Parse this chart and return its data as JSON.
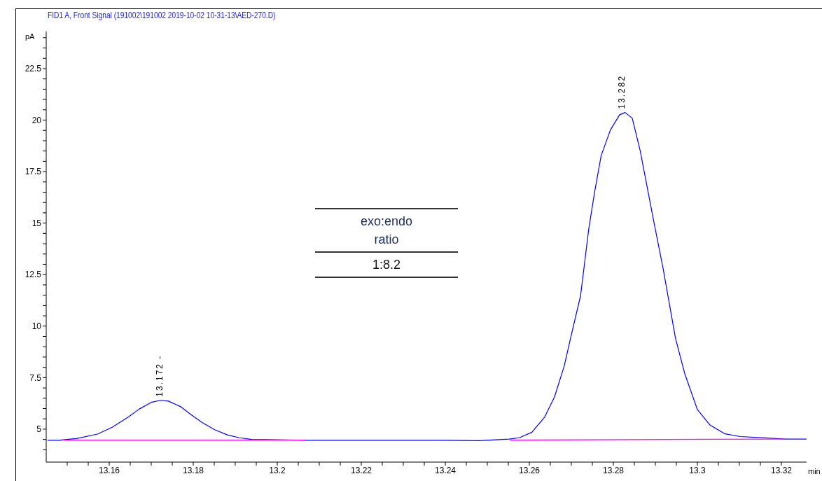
{
  "chart_data": {
    "type": "line",
    "title": "FID1 A, Front Signal (191002\\191002 2019-10-02 10-31-13\\AED-270.D)",
    "xlabel": "min",
    "ylabel": "pA",
    "xlim": [
      13.145,
      13.326
    ],
    "ylim": [
      3.4,
      24.3
    ],
    "xticks": [
      {
        "value": 13.15,
        "label": null
      },
      {
        "value": 13.155,
        "label": null
      },
      13.16,
      {
        "value": 13.165,
        "label": null
      },
      {
        "value": 13.17,
        "label": null
      },
      {
        "value": 13.175,
        "label": null
      },
      13.18,
      {
        "value": 13.185,
        "label": null
      },
      {
        "value": 13.19,
        "label": null
      },
      {
        "value": 13.195,
        "label": null
      },
      {
        "value": 13.2,
        "label": "13.2"
      },
      {
        "value": 13.205,
        "label": null
      },
      {
        "value": 13.21,
        "label": null
      },
      {
        "value": 13.215,
        "label": null
      },
      13.22,
      {
        "value": 13.225,
        "label": null
      },
      {
        "value": 13.23,
        "label": null
      },
      {
        "value": 13.235,
        "label": null
      },
      13.24,
      {
        "value": 13.245,
        "label": null
      },
      {
        "value": 13.25,
        "label": null
      },
      {
        "value": 13.255,
        "label": null
      },
      13.26,
      {
        "value": 13.265,
        "label": null
      },
      {
        "value": 13.27,
        "label": null
      },
      {
        "value": 13.275,
        "label": null
      },
      13.28,
      {
        "value": 13.285,
        "label": null
      },
      {
        "value": 13.29,
        "label": null
      },
      {
        "value": 13.295,
        "label": null
      },
      {
        "value": 13.3,
        "label": "13.3"
      },
      {
        "value": 13.305,
        "label": null
      },
      {
        "value": 13.31,
        "label": null
      },
      {
        "value": 13.315,
        "label": null
      },
      13.32
    ],
    "yticks": [
      {
        "value": 4,
        "label": null
      },
      {
        "value": 4.5,
        "label": null
      },
      5,
      {
        "value": 5.5,
        "label": null
      },
      {
        "value": 6,
        "label": null
      },
      {
        "value": 6.5,
        "label": null
      },
      {
        "value": 7,
        "label": null
      },
      7.5,
      {
        "value": 8,
        "label": null
      },
      {
        "value": 8.5,
        "label": null
      },
      {
        "value": 9,
        "label": null
      },
      {
        "value": 9.5,
        "label": null
      },
      10,
      {
        "value": 10.5,
        "label": null
      },
      {
        "value": 11,
        "label": null
      },
      {
        "value": 11.5,
        "label": null
      },
      {
        "value": 12,
        "label": null
      },
      12.5,
      {
        "value": 13,
        "label": null
      },
      {
        "value": 13.5,
        "label": null
      },
      {
        "value": 14,
        "label": null
      },
      {
        "value": 14.5,
        "label": null
      },
      15,
      {
        "value": 15.5,
        "label": null
      },
      {
        "value": 16,
        "label": null
      },
      {
        "value": 16.5,
        "label": null
      },
      {
        "value": 17,
        "label": null
      },
      17.5,
      {
        "value": 18,
        "label": null
      },
      {
        "value": 18.5,
        "label": null
      },
      {
        "value": 19,
        "label": null
      },
      {
        "value": 19.5,
        "label": null
      },
      20,
      {
        "value": 20.5,
        "label": null
      },
      {
        "value": 21,
        "label": null
      },
      {
        "value": 21.5,
        "label": null
      },
      {
        "value": 22,
        "label": null
      },
      22.5,
      {
        "value": 23,
        "label": null
      },
      {
        "value": 23.5,
        "label": null
      },
      {
        "value": 24,
        "label": null
      }
    ],
    "series": [
      {
        "color": "#0000ff",
        "x": [
          13.1453,
          13.148,
          13.1499,
          13.1522,
          13.1572,
          13.1607,
          13.1647,
          13.1671,
          13.17,
          13.1722,
          13.1741,
          13.177,
          13.1793,
          13.1822,
          13.1851,
          13.1881,
          13.191,
          13.1939,
          13.1997,
          13.207,
          13.22,
          13.24,
          13.248,
          13.2552,
          13.2576,
          13.2606,
          13.2636,
          13.266,
          13.2683,
          13.2698,
          13.2722,
          13.2741,
          13.2755,
          13.2771,
          13.2793,
          13.2815,
          13.2828,
          13.2845,
          13.2864,
          13.288,
          13.2896,
          13.2918,
          13.2948,
          13.297,
          13.3,
          13.303,
          13.3066,
          13.3102,
          13.3161,
          13.3209,
          13.326
        ],
        "values": [
          4.46,
          4.46,
          4.5,
          4.54,
          4.76,
          5.09,
          5.61,
          5.97,
          6.3,
          6.4,
          6.36,
          6.09,
          5.73,
          5.31,
          4.97,
          4.72,
          4.58,
          4.5,
          4.48,
          4.46,
          4.46,
          4.46,
          4.44,
          4.52,
          4.58,
          4.85,
          5.57,
          6.57,
          8.06,
          9.4,
          11.48,
          14.65,
          16.46,
          18.28,
          19.52,
          20.26,
          20.37,
          20.09,
          18.5,
          16.8,
          15.1,
          12.84,
          9.4,
          7.69,
          5.95,
          5.2,
          4.77,
          4.64,
          4.58,
          4.52,
          4.52
        ]
      },
      {
        "color": "#ff00ff",
        "x": [
          13.149,
          13.2065
        ],
        "values": [
          4.47,
          4.47
        ]
      },
      {
        "color": "#ff00ff",
        "x": [
          13.2554,
          13.3209
        ],
        "values": [
          4.47,
          4.52
        ]
      }
    ],
    "annotations": [
      {
        "text": "13.172 -",
        "x": 13.172,
        "y": 6.4
      },
      {
        "text": "13.282",
        "x": 13.282,
        "y": 20.37
      },
      "exo:endo ratio",
      "1:8.2"
    ]
  }
}
